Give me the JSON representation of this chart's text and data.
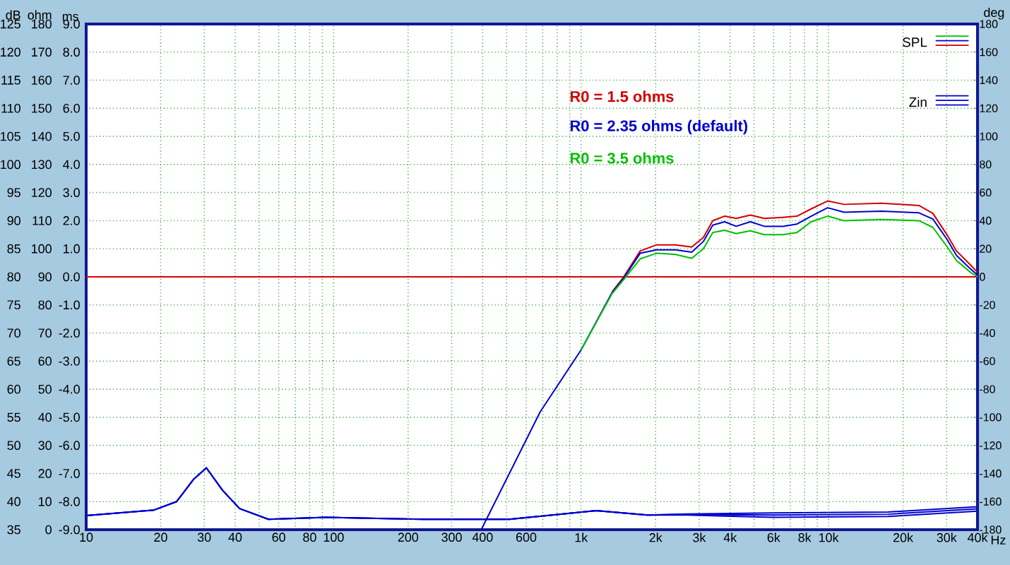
{
  "chart_data": {
    "type": "line",
    "ylabel": "dB",
    "y2label": "deg",
    "y3label": "ohm",
    "xlabel": "Hz",
    "log": "x",
    "grid": true,
    "xlim": [
      10,
      40000
    ],
    "xticks": [
      10,
      20,
      30,
      40,
      {
        "value": 50,
        "label": null
      },
      60,
      {
        "value": 70,
        "label": null
      },
      80,
      {
        "value": 90,
        "label": null
      },
      100,
      200,
      300,
      400,
      {
        "value": 500,
        "label": null
      },
      600,
      {
        "value": 700,
        "label": null
      },
      {
        "value": 800,
        "label": null
      },
      {
        "value": 900,
        "label": null
      },
      {
        "value": 1000,
        "label": "1k"
      },
      {
        "value": 2000,
        "label": "2k"
      },
      {
        "value": 3000,
        "label": "3k"
      },
      {
        "value": 4000,
        "label": "4k"
      },
      {
        "value": 5000,
        "label": null
      },
      {
        "value": 6000,
        "label": "6k"
      },
      {
        "value": 7000,
        "label": null
      },
      {
        "value": 8000,
        "label": "8k"
      },
      {
        "value": 9000,
        "label": null
      },
      {
        "value": 10000,
        "label": "10k"
      },
      {
        "value": 20000,
        "label": "20k"
      },
      {
        "value": 30000,
        "label": "30k"
      },
      {
        "value": 40000,
        "label": "40k"
      }
    ],
    "ylim": [
      35,
      125
    ],
    "yticks": [
      35,
      40,
      45,
      50,
      55,
      60,
      65,
      70,
      75,
      80,
      85,
      90,
      95,
      100,
      105,
      110,
      115,
      120,
      125
    ],
    "y2lim": [
      -180,
      180
    ],
    "y2ticks": [
      -180,
      -160,
      -140,
      -120,
      -100,
      -80,
      -60,
      -40,
      -20,
      0,
      20,
      40,
      60,
      80,
      100,
      120,
      140,
      160,
      180
    ],
    "y3lim": [
      0,
      180
    ],
    "y3ticks": [
      0,
      10,
      20,
      30,
      40,
      50,
      60,
      70,
      80,
      90,
      100,
      110,
      120,
      130,
      140,
      150,
      160,
      170,
      180
    ],
    "ref_lines": [
      {
        "axis": "y",
        "value": 80,
        "color": "#e00000"
      }
    ],
    "annotations": [
      "SPL",
      "Zin",
      "ms",
      "9.0",
      "8.0",
      "7.0",
      "6.0",
      "5.0",
      "4.0",
      "3.0",
      "2.0",
      "1.0",
      "0.0",
      "-1.0",
      "-2.0",
      "-3.0",
      "-4.0",
      "-5.0",
      "-6.0",
      "-7.0",
      "-8.0",
      "-9.0"
    ],
    "series": [
      {
        "name": "R0 = 1.5 ohms",
        "color": "#d00000",
        "x": [
          1334,
          1487,
          1733,
          2019,
          2404,
          2800,
          3120,
          3406,
          3800,
          4236,
          4830,
          5500,
          6550,
          7460,
          8510,
          9910,
          11550,
          16370,
          23180,
          26400,
          30100,
          32900,
          37500,
          40000
        ],
        "values": [
          77.3,
          80,
          84.6,
          85.7,
          85.7,
          85.3,
          87,
          90,
          90.8,
          90.4,
          91,
          90.4,
          90.6,
          90.8,
          92.1,
          93.5,
          92.9,
          93.1,
          92.7,
          91.3,
          87.5,
          84.6,
          82.1,
          80.8
        ]
      },
      {
        "name": "R0 = 2.35 ohms (default)",
        "color": "#0000d0",
        "x": [
          395,
          684,
          1000,
          1334,
          1487,
          1733,
          2019,
          2404,
          2800,
          3120,
          3406,
          3800,
          4236,
          4830,
          5500,
          6550,
          7460,
          8510,
          9910,
          11550,
          16370,
          23180,
          26400,
          30100,
          32900,
          37500,
          40000
        ],
        "values": [
          35,
          56,
          67,
          77.2,
          79.8,
          84.2,
          84.8,
          84.8,
          84.4,
          86.3,
          89.2,
          89.8,
          89,
          89.8,
          89,
          89,
          89.4,
          90.8,
          92.3,
          91.5,
          91.7,
          91.4,
          90.3,
          86.7,
          83.8,
          81.4,
          80.3
        ]
      },
      {
        "name": "R0 = 3.5 ohms",
        "color": "#00c000",
        "x": [
          1000,
          1334,
          1487,
          1733,
          2019,
          2404,
          2800,
          3120,
          3406,
          3800,
          4236,
          4830,
          5500,
          6550,
          7460,
          8510,
          9910,
          11550,
          16370,
          23180,
          26400,
          30100,
          32900,
          37500,
          40000
        ],
        "values": [
          67,
          77,
          79.5,
          83.2,
          84.2,
          84,
          83.3,
          85,
          87.9,
          88.3,
          87.7,
          88.2,
          87.5,
          87.5,
          87.9,
          89.8,
          90.8,
          90,
          90.2,
          90,
          88.8,
          85.4,
          82.9,
          80.8,
          80
        ]
      },
      {
        "axis": "y3",
        "color": "#0000d0",
        "x": [
          10,
          18.8,
          23.2,
          27.2,
          30.6,
          35.6,
          41.7,
          54.5,
          92.9,
          229,
          513,
          1150,
          1850,
          2690,
          5990,
          17400,
          40000
        ],
        "values": [
          5,
          7,
          10,
          18,
          22,
          14,
          7.5,
          3.7,
          4.4,
          3.7,
          3.7,
          6.8,
          5.2,
          5.6,
          6,
          6.3,
          8.2
        ]
      },
      {
        "axis": "y3",
        "color": "#0000d0",
        "x": [
          10,
          18.8,
          23.2,
          27.2,
          30.6,
          35.6,
          41.7,
          54.5,
          92.9,
          229,
          513,
          1150,
          1850,
          2690,
          5990,
          17400,
          40000
        ],
        "values": [
          5,
          7,
          10,
          18,
          22,
          14,
          7.5,
          3.7,
          4.4,
          3.7,
          3.7,
          6.8,
          5.2,
          5.4,
          5.2,
          5.5,
          7.4
        ]
      },
      {
        "axis": "y3",
        "color": "#0000d0",
        "x": [
          10,
          18.8,
          23.2,
          27.2,
          30.6,
          35.6,
          41.7,
          54.5,
          92.9,
          229,
          513,
          1150,
          1850,
          2690,
          5990,
          17400,
          40000
        ],
        "values": [
          5,
          7,
          10,
          18,
          22,
          14,
          7.5,
          3.7,
          4.4,
          3.7,
          3.7,
          6.8,
          5.2,
          5.2,
          4.4,
          4.7,
          6.6
        ]
      }
    ]
  }
}
